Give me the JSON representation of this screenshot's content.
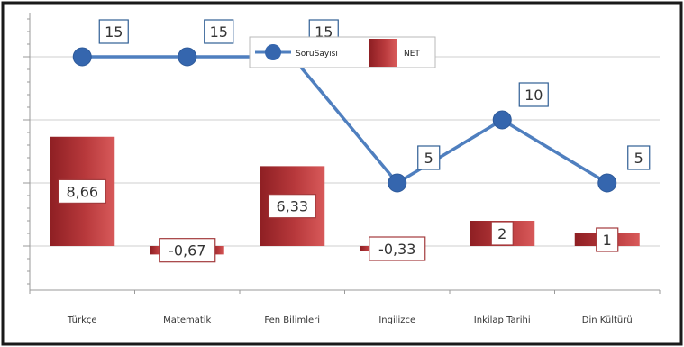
{
  "chart_data": {
    "type": "bar",
    "categories": [
      "Türkçe",
      "Matematik",
      "Fen Bilimleri",
      "Ingilizce",
      "Inkilap Tarihi",
      "Din Kültürü"
    ],
    "series": [
      {
        "name": "NET",
        "type": "bar",
        "values": [
          8.66,
          -0.67,
          6.33,
          -0.33,
          2,
          1
        ],
        "labels": [
          "8,66",
          "-0,67",
          "6,33",
          "-0,33",
          "2",
          "1"
        ]
      },
      {
        "name": "SoruSayisi",
        "type": "line",
        "values": [
          15,
          15,
          15,
          5,
          10,
          5
        ],
        "labels": [
          "15",
          "15",
          "15",
          "5",
          "10",
          "5"
        ]
      }
    ],
    "ylim": [
      -3.5,
      18.5
    ],
    "grid": true,
    "legend_position": "top-center",
    "colors": {
      "bar_dark": "#8e1f23",
      "bar_mid": "#b8393c",
      "bar_light": "#d85a5a",
      "line": "#4f7fbf",
      "marker": "#3566ae",
      "label_border_line": "#2f5f94",
      "label_border_bar": "#a33a3c",
      "grid": "#cfcfcf",
      "frame": "#1a1a1a"
    }
  }
}
